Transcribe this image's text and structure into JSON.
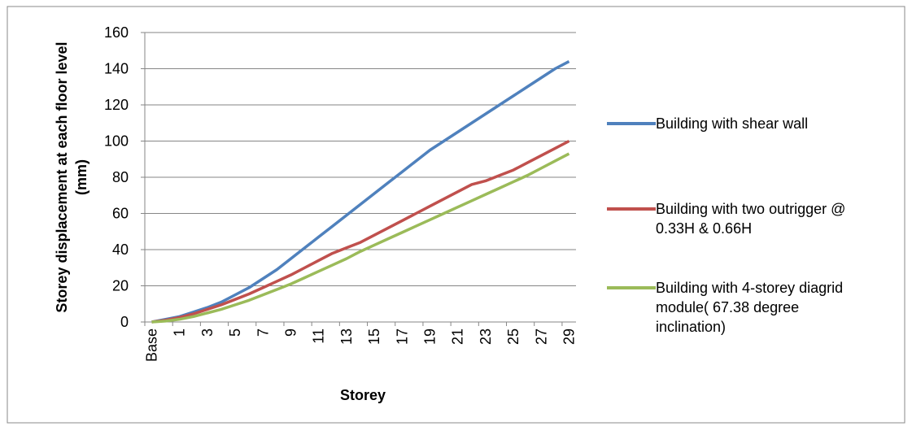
{
  "chart_data": {
    "type": "line",
    "xlabel": "Storey",
    "ylabel": "Storey displacement at each floor level (mm)",
    "categories": [
      "Base",
      null,
      "1",
      null,
      "3",
      null,
      "5",
      null,
      "7",
      null,
      "9",
      null,
      "11",
      null,
      "13",
      null,
      "15",
      null,
      "17",
      null,
      "19",
      null,
      "21",
      null,
      "23",
      null,
      "25",
      null,
      "27",
      null,
      "29"
    ],
    "series": [
      {
        "name": "Building with shear wall",
        "color": "#4f81bd",
        "values": [
          0,
          1.5,
          3,
          5.5,
          8,
          11,
          15,
          19,
          24,
          29,
          35,
          41,
          47,
          53,
          59,
          65,
          71,
          77,
          83,
          89,
          95,
          100,
          105,
          110,
          115,
          120,
          125,
          130,
          135,
          140,
          144
        ]
      },
      {
        "name": "Building with two outrigger @ 0.33H & 0.66H",
        "color": "#c0504d",
        "values": [
          0,
          1,
          2.5,
          4.5,
          7,
          9.5,
          12.5,
          15.5,
          19,
          22.5,
          26,
          30,
          34,
          38,
          41,
          44,
          48,
          52,
          56,
          60,
          64,
          68,
          72,
          76,
          78,
          81,
          84,
          88,
          92,
          96,
          100
        ]
      },
      {
        "name": "Building with 4-storey diagrid module( 67.38 degree inclination)",
        "color": "#9bbb59",
        "values": [
          0,
          0.5,
          1.5,
          3,
          5,
          7,
          9.5,
          12,
          15,
          18,
          21,
          24.5,
          28,
          31.5,
          35,
          39,
          42.5,
          46,
          49.5,
          53,
          56.5,
          60,
          63.5,
          67,
          70.5,
          74,
          77.5,
          81,
          85,
          89,
          93
        ]
      }
    ],
    "ylim": [
      0,
      160
    ],
    "yticks": [
      0,
      20,
      40,
      60,
      80,
      100,
      120,
      140,
      160
    ],
    "grid": true
  }
}
